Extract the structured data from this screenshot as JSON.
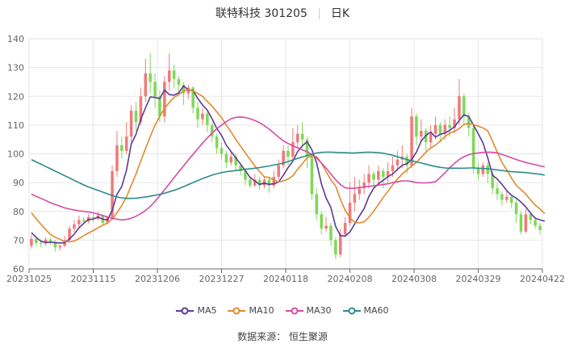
{
  "header": {
    "stock": "联特科技 301205",
    "period": "日K"
  },
  "footer": {
    "source": "数据来源：  恒生聚源"
  },
  "chart_data": {
    "type": "candlestick",
    "title": "联特科技 301205",
    "period": "日K",
    "ylim": [
      60,
      140
    ],
    "yticks": [
      60,
      70,
      80,
      90,
      100,
      110,
      120,
      130,
      140
    ],
    "xticks": [
      "20231025",
      "20231115",
      "20231206",
      "20231227",
      "20240118",
      "20240208",
      "20240308",
      "20240329",
      "20240422"
    ],
    "grid": true,
    "legend_position": "bottom",
    "colors": {
      "up": "#f07a7a",
      "down": "#7ed957",
      "MA5": "#5b3a99",
      "MA10": "#e08a2e",
      "MA30": "#d54aa6",
      "MA60": "#2e8b8b"
    },
    "candles": [
      [
        68.0,
        70.5,
        71.8,
        67.1
      ],
      [
        70.5,
        69.0,
        71.0,
        68.2
      ],
      [
        69.0,
        68.8,
        70.3,
        67.5
      ],
      [
        68.8,
        70.2,
        71.0,
        68.0
      ],
      [
        70.2,
        69.5,
        70.8,
        68.3
      ],
      [
        69.5,
        67.5,
        70.0,
        66.0
      ],
      [
        67.5,
        68.0,
        68.5,
        66.4
      ],
      [
        68.0,
        70.0,
        71.5,
        67.6
      ],
      [
        70.0,
        74.0,
        75.0,
        69.5
      ],
      [
        74.0,
        75.5,
        77.0,
        73.0
      ],
      [
        75.5,
        77.0,
        78.5,
        74.5
      ],
      [
        77.0,
        76.5,
        78.0,
        75.6
      ],
      [
        76.5,
        78.0,
        79.0,
        75.8
      ],
      [
        78.0,
        77.5,
        79.2,
        76.5
      ],
      [
        77.5,
        78.5,
        80.0,
        76.8
      ],
      [
        78.5,
        76.0,
        78.8,
        75.0
      ],
      [
        76.0,
        78.0,
        78.5,
        75.5
      ],
      [
        78.0,
        94.0,
        96.0,
        77.5
      ],
      [
        94.0,
        103.0,
        108.0,
        92.0
      ],
      [
        103.0,
        101.0,
        106.0,
        98.5
      ],
      [
        101.0,
        106.0,
        111.0,
        100.0
      ],
      [
        106.0,
        115.0,
        117.0,
        104.0
      ],
      [
        115.0,
        111.0,
        118.0,
        108.0
      ],
      [
        111.0,
        120.0,
        123.0,
        110.0
      ],
      [
        120.0,
        128.0,
        133.0,
        118.0
      ],
      [
        128.0,
        125.0,
        135.0,
        121.0
      ],
      [
        125.0,
        120.0,
        128.0,
        116.0
      ],
      [
        120.0,
        113.0,
        122.0,
        111.0
      ],
      [
        113.0,
        125.0,
        127.0,
        111.0
      ],
      [
        125.0,
        129.0,
        135.0,
        122.0
      ],
      [
        129.0,
        126.0,
        131.0,
        123.0
      ],
      [
        126.0,
        124.0,
        127.0,
        121.0
      ],
      [
        124.0,
        121.0,
        125.0,
        117.0
      ],
      [
        121.0,
        123.0,
        124.0,
        119.0
      ],
      [
        123.0,
        116.0,
        123.5,
        114.0
      ],
      [
        116.0,
        112.0,
        118.0,
        109.0
      ],
      [
        112.0,
        114.0,
        116.0,
        110.0
      ],
      [
        114.0,
        110.0,
        115.0,
        107.5
      ],
      [
        110.0,
        106.0,
        111.0,
        104.0
      ],
      [
        106.0,
        102.0,
        107.0,
        100.0
      ],
      [
        102.0,
        100.0,
        104.0,
        98.0
      ],
      [
        100.0,
        97.0,
        101.0,
        95.0
      ],
      [
        97.0,
        99.0,
        100.5,
        96.0
      ],
      [
        99.0,
        96.0,
        100.0,
        94.0
      ],
      [
        96.0,
        94.0,
        97.0,
        92.5
      ],
      [
        94.0,
        91.0,
        95.0,
        89.0
      ],
      [
        91.0,
        89.0,
        92.0,
        88.0
      ],
      [
        89.0,
        91.0,
        93.0,
        88.5
      ],
      [
        91.0,
        89.0,
        92.0,
        87.5
      ],
      [
        89.0,
        91.0,
        92.0,
        88.0
      ],
      [
        91.0,
        89.0,
        92.0,
        86.5
      ],
      [
        89.0,
        92.0,
        94.0,
        88.0
      ],
      [
        92.0,
        96.0,
        98.0,
        91.0
      ],
      [
        96.0,
        101.0,
        103.0,
        95.0
      ],
      [
        101.0,
        99.0,
        103.0,
        96.0
      ],
      [
        99.0,
        104.0,
        109.0,
        98.0
      ],
      [
        104.0,
        107.0,
        110.0,
        102.0
      ],
      [
        107.0,
        105.0,
        111.0,
        102.0
      ],
      [
        105.0,
        99.0,
        106.0,
        95.0
      ],
      [
        99.0,
        86.0,
        100.0,
        84.0
      ],
      [
        86.0,
        79.0,
        88.0,
        77.0
      ],
      [
        79.0,
        74.0,
        80.0,
        72.0
      ],
      [
        74.0,
        75.0,
        78.0,
        73.0
      ],
      [
        75.0,
        70.0,
        76.0,
        68.0
      ],
      [
        70.0,
        65.0,
        71.0,
        63.5
      ],
      [
        65.0,
        72.0,
        74.0,
        64.0
      ],
      [
        72.0,
        76.0,
        78.0,
        71.0
      ],
      [
        76.0,
        83.0,
        90.0,
        75.0
      ],
      [
        83.0,
        86.0,
        92.0,
        80.0
      ],
      [
        86.0,
        88.0,
        91.0,
        84.0
      ],
      [
        88.0,
        90.0,
        93.0,
        86.0
      ],
      [
        90.0,
        93.0,
        96.0,
        88.0
      ],
      [
        93.0,
        91.0,
        94.0,
        88.0
      ],
      [
        91.0,
        94.0,
        96.0,
        89.0
      ],
      [
        94.0,
        92.0,
        95.0,
        88.0
      ],
      [
        92.0,
        94.0,
        97.0,
        90.0
      ],
      [
        94.0,
        96.0,
        99.0,
        92.0
      ],
      [
        96.0,
        98.0,
        101.0,
        94.0
      ],
      [
        98.0,
        99.0,
        103.0,
        95.0
      ],
      [
        99.0,
        96.0,
        100.0,
        93.0
      ],
      [
        96.0,
        113.0,
        116.0,
        95.0
      ],
      [
        113.0,
        106.0,
        114.0,
        103.0
      ],
      [
        106.0,
        108.0,
        112.0,
        104.0
      ],
      [
        108.0,
        104.0,
        109.0,
        101.0
      ],
      [
        104.0,
        107.0,
        110.0,
        102.0
      ],
      [
        107.0,
        110.0,
        113.0,
        105.0
      ],
      [
        110.0,
        107.0,
        111.0,
        104.0
      ],
      [
        107.0,
        110.0,
        112.0,
        105.0
      ],
      [
        110.0,
        109.0,
        113.0,
        106.0
      ],
      [
        109.0,
        112.0,
        116.0,
        107.0
      ],
      [
        112.0,
        120.0,
        126.0,
        110.0
      ],
      [
        120.0,
        113.0,
        121.0,
        110.0
      ],
      [
        113.0,
        109.0,
        114.0,
        106.0
      ],
      [
        109.0,
        95.0,
        110.0,
        93.0
      ],
      [
        95.0,
        93.0,
        97.0,
        91.0
      ],
      [
        93.0,
        96.0,
        97.0,
        92.0
      ],
      [
        96.0,
        93.0,
        97.0,
        90.0
      ],
      [
        93.0,
        88.0,
        94.0,
        86.0
      ],
      [
        88.0,
        86.0,
        90.0,
        84.0
      ],
      [
        86.0,
        84.0,
        87.0,
        82.0
      ],
      [
        84.0,
        85.0,
        87.0,
        83.0
      ],
      [
        85.0,
        83.0,
        86.0,
        81.0
      ],
      [
        83.0,
        79.0,
        84.0,
        76.0
      ],
      [
        79.0,
        73.0,
        80.0,
        72.0
      ],
      [
        73.0,
        79.0,
        81.0,
        72.5
      ],
      [
        79.0,
        77.0,
        80.0,
        75.5
      ],
      [
        77.0,
        75.0,
        78.0,
        74.0
      ],
      [
        75.0,
        73.5,
        76.0,
        72.0
      ]
    ],
    "series": [
      {
        "name": "MA5",
        "values": [
          72.6,
          71.0,
          69.6,
          69.2,
          69.3,
          69.1,
          69.0,
          69.1,
          70.4,
          72.1,
          74.3,
          75.8,
          77.2,
          77.3,
          78.0,
          77.3,
          77.0,
          80.4,
          85.9,
          88.6,
          94.3,
          103.4,
          106.8,
          112.0,
          116.0,
          119.8,
          119.6,
          119.2,
          122.2,
          120.6,
          120.4,
          121.2,
          123.6,
          122.2,
          122.0,
          119.2,
          117.0,
          115.2,
          112.2,
          108.8,
          106.4,
          103.0,
          100.8,
          98.6,
          96.4,
          94.2,
          91.8,
          90.6,
          89.4,
          89.8,
          89.4,
          89.6,
          90.2,
          92.6,
          95.2,
          97.4,
          100.8,
          102.8,
          104.2,
          101.4,
          96.8,
          89.6,
          84.6,
          81.4,
          74.8,
          71.6,
          71.4,
          72.8,
          75.6,
          78.4,
          81.0,
          85.2,
          88.0,
          89.6,
          90.8,
          92.0,
          93.0,
          94.6,
          96.0,
          96.6,
          98.0,
          100.6,
          104.4,
          106.4,
          107.6,
          105.8,
          106.8,
          107.2,
          108.2,
          109.4,
          111.6,
          113.6,
          113.0,
          110.0,
          107.0,
          103.8,
          98.6,
          92.6,
          91.2,
          89.4,
          87.2,
          85.6,
          84.6,
          83.2,
          81.6,
          79.4,
          77.6,
          77.0,
          76.6
        ],
        "raw": [
          72.6,
          71.0,
          69.6,
          69.2,
          69.3,
          69.1,
          69.0,
          69.1,
          70.4,
          72.1,
          74.3,
          75.8,
          77.2,
          77.3,
          78.0,
          77.3,
          77.0,
          80.4,
          85.9,
          88.6,
          94.3,
          103.4,
          106.8,
          112.0,
          116.0,
          119.8,
          119.6,
          119.2,
          122.2,
          120.6,
          120.4,
          121.2,
          123.6,
          122.2,
          122.0,
          119.2,
          117.0,
          115.2,
          112.2,
          108.8,
          106.4,
          103.0,
          100.8,
          98.6,
          96.4,
          94.2,
          91.8,
          90.6,
          89.4,
          89.8,
          89.4,
          89.6,
          90.2,
          92.6,
          95.2,
          97.4,
          100.8,
          102.8,
          104.2,
          101.4,
          96.8,
          89.6,
          84.6,
          81.4,
          74.8,
          71.6,
          71.4,
          72.8,
          75.6,
          78.4,
          81.0,
          85.2,
          88.0,
          89.6,
          90.8,
          92.0,
          93.0,
          94.6,
          96.0,
          96.6,
          98.0,
          100.6,
          104.4,
          106.4,
          107.6,
          105.8,
          106.8,
          107.2,
          108.2,
          109.4,
          111.6,
          113.6,
          113.0,
          110.0,
          107.0,
          103.8,
          98.6,
          92.6,
          91.2,
          89.4,
          87.2,
          85.6,
          84.6,
          83.2,
          81.6,
          79.4,
          77.6,
          77.0,
          76.6
        ]
      },
      {
        "name": "MA10",
        "values": [
          79.5,
          77.5,
          75.5,
          73.7,
          72.0,
          71.0,
          70.3,
          69.5,
          69.4,
          69.7,
          70.5,
          71.5,
          72.5,
          73.3,
          74.3,
          75.2,
          76.0,
          77.3,
          79.5,
          82.0,
          85.0,
          89.0,
          93.0,
          97.5,
          101.8,
          106.0,
          110.0,
          113.0,
          115.8,
          117.8,
          119.6,
          120.6,
          121.8,
          122.4,
          121.8,
          121.0,
          120.0,
          118.2,
          116.6,
          114.6,
          112.6,
          110.0,
          107.6,
          105.0,
          102.6,
          100.4,
          98.0,
          95.8,
          93.8,
          92.0,
          91.8,
          90.8,
          90.2,
          90.6,
          91.2,
          92.4,
          94.6,
          96.6,
          98.6,
          99.4,
          99.0,
          96.8,
          93.8,
          91.0,
          88.8,
          84.2,
          80.4,
          77.8,
          76.2,
          76.0,
          76.4,
          78.0,
          80.0,
          82.4,
          84.8,
          87.0,
          89.2,
          91.2,
          93.0,
          94.4,
          95.8,
          97.0,
          98.8,
          100.6,
          102.0,
          103.0,
          104.4,
          106.0,
          107.2,
          107.8,
          108.8,
          110.2,
          110.6,
          110.2,
          109.6,
          109.0,
          108.0,
          104.4,
          100.6,
          97.0,
          94.4,
          91.6,
          89.0,
          87.6,
          86.0,
          84.0,
          82.2,
          80.8,
          79.2
        ]
      },
      {
        "name": "MA30",
        "values": [
          86.0,
          85.2,
          84.5,
          83.8,
          83.0,
          82.4,
          81.8,
          81.2,
          80.8,
          80.5,
          80.2,
          80.0,
          79.8,
          79.5,
          79.0,
          78.6,
          78.0,
          77.6,
          77.3,
          77.0,
          77.2,
          77.6,
          78.3,
          79.2,
          80.3,
          81.7,
          83.5,
          85.4,
          87.5,
          89.6,
          91.7,
          93.8,
          95.8,
          97.9,
          99.8,
          101.8,
          103.7,
          105.5,
          107.2,
          108.7,
          110.0,
          111.2,
          112.2,
          112.7,
          112.8,
          112.6,
          112.2,
          111.6,
          110.8,
          109.8,
          108.6,
          107.2,
          105.8,
          104.5,
          103.6,
          102.8,
          102.1,
          101.4,
          100.7,
          99.8,
          98.5,
          96.8,
          95.0,
          93.0,
          91.0,
          89.3,
          88.2,
          88.0,
          88.1,
          88.3,
          88.5,
          88.7,
          88.9,
          89.1,
          89.3,
          89.6,
          90.0,
          90.3,
          90.6,
          90.6,
          90.4,
          90.0,
          89.9,
          89.9,
          90.0,
          90.3,
          91.8,
          93.4,
          95.2,
          96.7,
          98.0,
          99.0,
          99.7,
          100.1,
          100.3,
          100.5,
          100.6,
          100.5,
          100.3,
          99.8,
          99.2,
          98.6,
          98.0,
          97.5,
          97.0,
          96.6,
          96.2,
          95.8,
          95.5
        ]
      },
      {
        "name": "MA60",
        "values": [
          98.0,
          97.2,
          96.4,
          95.6,
          94.8,
          94.0,
          93.2,
          92.4,
          91.6,
          90.8,
          90.0,
          89.2,
          88.5,
          87.9,
          87.3,
          86.7,
          86.1,
          85.5,
          85.0,
          84.7,
          84.5,
          84.5,
          84.6,
          84.8,
          85.0,
          85.3,
          85.6,
          85.9,
          86.3,
          86.8,
          87.3,
          87.9,
          88.6,
          89.3,
          90.0,
          90.7,
          91.4,
          92.0,
          92.6,
          93.1,
          93.5,
          93.8,
          94.0,
          94.2,
          94.4,
          94.6,
          94.8,
          95.0,
          95.2,
          95.5,
          95.8,
          96.1,
          96.4,
          96.8,
          97.3,
          97.9,
          98.4,
          98.9,
          99.4,
          99.9,
          100.3,
          100.5,
          100.6,
          100.6,
          100.5,
          100.4,
          100.4,
          100.3,
          100.3,
          100.4,
          100.5,
          100.6,
          100.5,
          100.4,
          100.2,
          99.9,
          99.5,
          99.0,
          98.5,
          98.0,
          97.6,
          97.2,
          96.8,
          96.4,
          96.0,
          95.6,
          95.3,
          95.1,
          95.0,
          95.0,
          95.0,
          95.0,
          95.1,
          95.1,
          95.0,
          94.9,
          94.8,
          94.6,
          94.4,
          94.2,
          94.0,
          93.8,
          93.7,
          93.6,
          93.5,
          93.3,
          93.1,
          92.9,
          92.6
        ]
      }
    ]
  }
}
